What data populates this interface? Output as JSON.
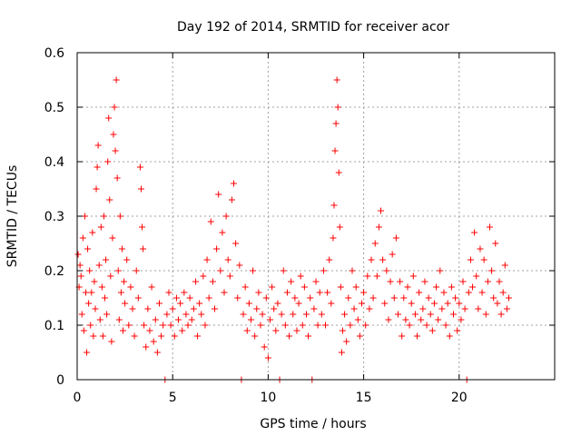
{
  "chart_data": {
    "type": "scatter",
    "title": "Day 192 of 2014, SRMTID for receiver acor",
    "xlabel": "GPS time / hours",
    "ylabel": "SRMTID / TECUs",
    "xlim": [
      0,
      25
    ],
    "ylim": [
      0,
      0.6
    ],
    "x_ticks": [
      0,
      5,
      10,
      15,
      20
    ],
    "x_tick_labels": [
      "0",
      "5",
      "10",
      "15",
      "20"
    ],
    "y_ticks": [
      0,
      0.1,
      0.2,
      0.3,
      0.4,
      0.5,
      0.6
    ],
    "y_tick_labels": [
      "0",
      "0.1",
      "0.2",
      "0.3",
      "0.4",
      "0.5",
      "0.6"
    ],
    "grid": true,
    "marker": "plus",
    "color": "#ff0000",
    "series": [
      {
        "name": "SRMTID",
        "points": [
          [
            0.05,
            0.23
          ],
          [
            0.1,
            0.17
          ],
          [
            0.15,
            0.21
          ],
          [
            0.2,
            0.19
          ],
          [
            0.25,
            0.12
          ],
          [
            0.3,
            0.26
          ],
          [
            0.35,
            0.09
          ],
          [
            0.4,
            0.3
          ],
          [
            0.45,
            0.16
          ],
          [
            0.5,
            0.05
          ],
          [
            0.55,
            0.24
          ],
          [
            0.6,
            0.14
          ],
          [
            0.65,
            0.2
          ],
          [
            0.7,
            0.1
          ],
          [
            0.75,
            0.16
          ],
          [
            0.8,
            0.27
          ],
          [
            0.85,
            0.08
          ],
          [
            0.9,
            0.18
          ],
          [
            0.95,
            0.13
          ],
          [
            1.0,
            0.35
          ],
          [
            1.05,
            0.39
          ],
          [
            1.1,
            0.43
          ],
          [
            1.15,
            0.21
          ],
          [
            1.2,
            0.11
          ],
          [
            1.25,
            0.28
          ],
          [
            1.3,
            0.17
          ],
          [
            1.35,
            0.08
          ],
          [
            1.4,
            0.3
          ],
          [
            1.45,
            0.15
          ],
          [
            1.5,
            0.22
          ],
          [
            1.55,
            0.12
          ],
          [
            1.6,
            0.4
          ],
          [
            1.65,
            0.48
          ],
          [
            1.7,
            0.33
          ],
          [
            1.75,
            0.19
          ],
          [
            1.8,
            0.07
          ],
          [
            1.85,
            0.26
          ],
          [
            1.9,
            0.45
          ],
          [
            1.95,
            0.5
          ],
          [
            2.0,
            0.42
          ],
          [
            2.05,
            0.55
          ],
          [
            2.1,
            0.37
          ],
          [
            2.15,
            0.2
          ],
          [
            2.2,
            0.11
          ],
          [
            2.25,
            0.3
          ],
          [
            2.3,
            0.16
          ],
          [
            2.35,
            0.24
          ],
          [
            2.4,
            0.09
          ],
          [
            2.45,
            0.18
          ],
          [
            2.5,
            0.14
          ],
          [
            2.6,
            0.22
          ],
          [
            2.7,
            0.1
          ],
          [
            2.8,
            0.17
          ],
          [
            2.9,
            0.13
          ],
          [
            3.0,
            0.08
          ],
          [
            3.1,
            0.2
          ],
          [
            3.2,
            0.15
          ],
          [
            3.3,
            0.39
          ],
          [
            3.35,
            0.35
          ],
          [
            3.4,
            0.28
          ],
          [
            3.45,
            0.24
          ],
          [
            3.5,
            0.1
          ],
          [
            3.6,
            0.06
          ],
          [
            3.7,
            0.13
          ],
          [
            3.8,
            0.09
          ],
          [
            3.9,
            0.17
          ],
          [
            4.0,
            0.07
          ],
          [
            4.1,
            0.11
          ],
          [
            4.2,
            0.05
          ],
          [
            4.3,
            0.14
          ],
          [
            4.4,
            0.08
          ],
          [
            4.5,
            0.1
          ],
          [
            4.6,
            0.0
          ],
          [
            4.7,
            0.12
          ],
          [
            4.8,
            0.16
          ],
          [
            4.9,
            0.1
          ],
          [
            5.0,
            0.13
          ],
          [
            5.1,
            0.08
          ],
          [
            5.2,
            0.15
          ],
          [
            5.3,
            0.11
          ],
          [
            5.4,
            0.14
          ],
          [
            5.5,
            0.09
          ],
          [
            5.6,
            0.16
          ],
          [
            5.7,
            0.12
          ],
          [
            5.8,
            0.1
          ],
          [
            5.9,
            0.15
          ],
          [
            6.0,
            0.11
          ],
          [
            6.1,
            0.13
          ],
          [
            6.2,
            0.18
          ],
          [
            6.3,
            0.08
          ],
          [
            6.4,
            0.14
          ],
          [
            6.5,
            0.12
          ],
          [
            6.6,
            0.19
          ],
          [
            6.7,
            0.1
          ],
          [
            6.8,
            0.22
          ],
          [
            6.9,
            0.15
          ],
          [
            7.0,
            0.29
          ],
          [
            7.1,
            0.18
          ],
          [
            7.2,
            0.13
          ],
          [
            7.3,
            0.24
          ],
          [
            7.4,
            0.34
          ],
          [
            7.5,
            0.2
          ],
          [
            7.6,
            0.27
          ],
          [
            7.7,
            0.16
          ],
          [
            7.8,
            0.3
          ],
          [
            7.9,
            0.22
          ],
          [
            8.0,
            0.19
          ],
          [
            8.1,
            0.33
          ],
          [
            8.2,
            0.36
          ],
          [
            8.3,
            0.25
          ],
          [
            8.4,
            0.15
          ],
          [
            8.5,
            0.21
          ],
          [
            8.6,
            0.0
          ],
          [
            8.7,
            0.12
          ],
          [
            8.8,
            0.17
          ],
          [
            8.9,
            0.09
          ],
          [
            9.0,
            0.14
          ],
          [
            9.1,
            0.11
          ],
          [
            9.2,
            0.2
          ],
          [
            9.3,
            0.08
          ],
          [
            9.4,
            0.13
          ],
          [
            9.5,
            0.16
          ],
          [
            9.6,
            0.1
          ],
          [
            9.7,
            0.12
          ],
          [
            9.8,
            0.06
          ],
          [
            9.9,
            0.15
          ],
          [
            10.0,
            0.04
          ],
          [
            10.1,
            0.11
          ],
          [
            10.2,
            0.17
          ],
          [
            10.3,
            0.13
          ],
          [
            10.4,
            0.09
          ],
          [
            10.5,
            0.14
          ],
          [
            10.6,
            0.0
          ],
          [
            10.7,
            0.12
          ],
          [
            10.8,
            0.2
          ],
          [
            10.9,
            0.1
          ],
          [
            11.0,
            0.16
          ],
          [
            11.1,
            0.08
          ],
          [
            11.2,
            0.18
          ],
          [
            11.3,
            0.12
          ],
          [
            11.4,
            0.15
          ],
          [
            11.5,
            0.09
          ],
          [
            11.6,
            0.14
          ],
          [
            11.7,
            0.19
          ],
          [
            11.8,
            0.1
          ],
          [
            11.9,
            0.17
          ],
          [
            12.0,
            0.12
          ],
          [
            12.1,
            0.08
          ],
          [
            12.2,
            0.15
          ],
          [
            12.3,
            0.0
          ],
          [
            12.4,
            0.13
          ],
          [
            12.5,
            0.18
          ],
          [
            12.6,
            0.1
          ],
          [
            12.7,
            0.16
          ],
          [
            12.8,
            0.12
          ],
          [
            12.9,
            0.2
          ],
          [
            13.0,
            0.1
          ],
          [
            13.1,
            0.16
          ],
          [
            13.2,
            0.22
          ],
          [
            13.3,
            0.14
          ],
          [
            13.4,
            0.26
          ],
          [
            13.45,
            0.32
          ],
          [
            13.5,
            0.42
          ],
          [
            13.55,
            0.47
          ],
          [
            13.6,
            0.55
          ],
          [
            13.65,
            0.5
          ],
          [
            13.7,
            0.38
          ],
          [
            13.75,
            0.28
          ],
          [
            13.8,
            0.17
          ],
          [
            13.85,
            0.05
          ],
          [
            13.9,
            0.09
          ],
          [
            14.0,
            0.12
          ],
          [
            14.1,
            0.07
          ],
          [
            14.2,
            0.15
          ],
          [
            14.3,
            0.1
          ],
          [
            14.4,
            0.2
          ],
          [
            14.5,
            0.13
          ],
          [
            14.6,
            0.17
          ],
          [
            14.7,
            0.11
          ],
          [
            14.8,
            0.08
          ],
          [
            14.9,
            0.14
          ],
          [
            15.0,
            0.16
          ],
          [
            15.1,
            0.1
          ],
          [
            15.2,
            0.19
          ],
          [
            15.3,
            0.13
          ],
          [
            15.4,
            0.22
          ],
          [
            15.5,
            0.15
          ],
          [
            15.6,
            0.25
          ],
          [
            15.7,
            0.19
          ],
          [
            15.8,
            0.28
          ],
          [
            15.9,
            0.31
          ],
          [
            16.0,
            0.22
          ],
          [
            16.1,
            0.14
          ],
          [
            16.2,
            0.2
          ],
          [
            16.3,
            0.11
          ],
          [
            16.4,
            0.18
          ],
          [
            16.5,
            0.23
          ],
          [
            16.6,
            0.15
          ],
          [
            16.7,
            0.26
          ],
          [
            16.8,
            0.12
          ],
          [
            16.9,
            0.18
          ],
          [
            17.0,
            0.08
          ],
          [
            17.1,
            0.15
          ],
          [
            17.2,
            0.11
          ],
          [
            17.3,
            0.17
          ],
          [
            17.4,
            0.1
          ],
          [
            17.5,
            0.14
          ],
          [
            17.6,
            0.19
          ],
          [
            17.7,
            0.12
          ],
          [
            17.8,
            0.08
          ],
          [
            17.9,
            0.16
          ],
          [
            18.0,
            0.11
          ],
          [
            18.1,
            0.13
          ],
          [
            18.2,
            0.18
          ],
          [
            18.3,
            0.1
          ],
          [
            18.4,
            0.15
          ],
          [
            18.5,
            0.12
          ],
          [
            18.6,
            0.09
          ],
          [
            18.7,
            0.14
          ],
          [
            18.8,
            0.17
          ],
          [
            18.9,
            0.11
          ],
          [
            19.0,
            0.2
          ],
          [
            19.1,
            0.13
          ],
          [
            19.2,
            0.16
          ],
          [
            19.3,
            0.1
          ],
          [
            19.4,
            0.14
          ],
          [
            19.5,
            0.08
          ],
          [
            19.6,
            0.17
          ],
          [
            19.7,
            0.12
          ],
          [
            19.8,
            0.15
          ],
          [
            19.9,
            0.09
          ],
          [
            20.0,
            0.14
          ],
          [
            20.1,
            0.11
          ],
          [
            20.2,
            0.18
          ],
          [
            20.3,
            0.13
          ],
          [
            20.4,
            0.0
          ],
          [
            20.5,
            0.16
          ],
          [
            20.6,
            0.22
          ],
          [
            20.7,
            0.17
          ],
          [
            20.8,
            0.27
          ],
          [
            20.9,
            0.19
          ],
          [
            21.0,
            0.13
          ],
          [
            21.1,
            0.24
          ],
          [
            21.2,
            0.16
          ],
          [
            21.3,
            0.22
          ],
          [
            21.4,
            0.12
          ],
          [
            21.5,
            0.18
          ],
          [
            21.6,
            0.28
          ],
          [
            21.7,
            0.2
          ],
          [
            21.8,
            0.15
          ],
          [
            21.9,
            0.25
          ],
          [
            22.0,
            0.14
          ],
          [
            22.1,
            0.18
          ],
          [
            22.2,
            0.12
          ],
          [
            22.3,
            0.16
          ],
          [
            22.4,
            0.21
          ],
          [
            22.5,
            0.13
          ],
          [
            22.6,
            0.15
          ]
        ]
      }
    ]
  }
}
